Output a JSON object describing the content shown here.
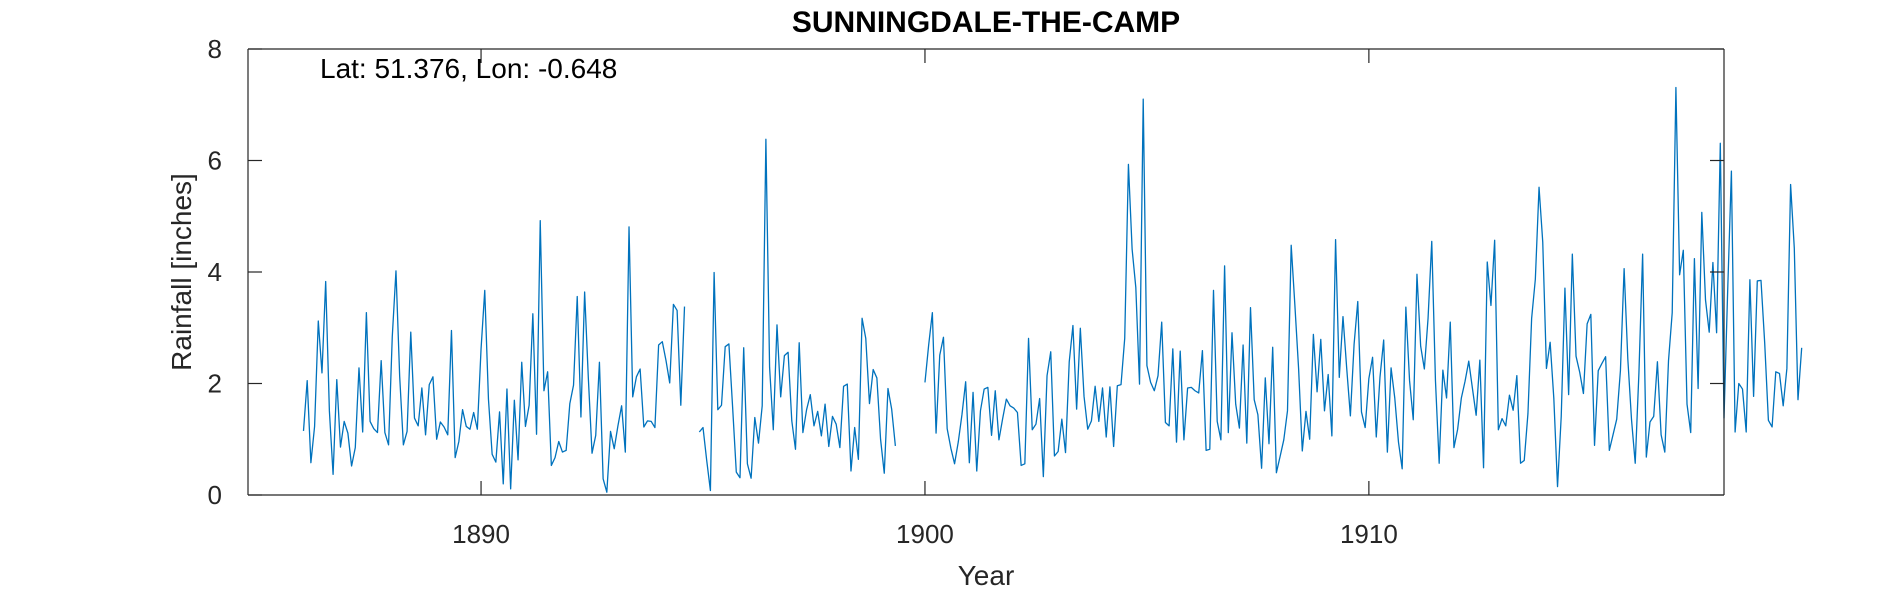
{
  "chart_data": {
    "type": "line",
    "title": "SUNNINGDALE-THE-CAMP",
    "xlabel": "Year",
    "ylabel": "Rainfall [inches]",
    "annotation": "Lat: 51.376, Lon: -0.648",
    "xlim": [
      1884.75,
      1918.0
    ],
    "ylim": [
      0,
      8
    ],
    "xticks": [
      1890,
      1900,
      1910
    ],
    "yticks": [
      0,
      2,
      4,
      6,
      8
    ],
    "grid": false,
    "legend": "none",
    "line_color": "#0072BD",
    "series": [
      {
        "x_start": 1886.0,
        "x_step": 0.08333333,
        "values": [
          1.15,
          2.05,
          0.58,
          1.23,
          3.12,
          2.19,
          3.83,
          1.51,
          0.37,
          2.07,
          0.86,
          1.32,
          1.11,
          0.52,
          0.85,
          2.28,
          1.13,
          3.27,
          1.32,
          1.19,
          1.12,
          2.41,
          1.12,
          0.9,
          2.84,
          4.02,
          2.13,
          0.9,
          1.14,
          2.92,
          1.38,
          1.24,
          1.92,
          1.08,
          1.98,
          2.12,
          1.0,
          1.31,
          1.22,
          1.08,
          2.95,
          0.67,
          0.96,
          1.53,
          1.23,
          1.18,
          1.48,
          1.18,
          2.62,
          3.67,
          1.72,
          0.73,
          0.59,
          1.49,
          0.2,
          1.9,
          0.11,
          1.7,
          0.63,
          2.38,
          1.23,
          1.61,
          3.25,
          1.09,
          4.92,
          1.87,
          2.21,
          0.53,
          0.67,
          0.96,
          0.77,
          0.8,
          1.64,
          1.97,
          3.56,
          1.4,
          3.64,
          2.1,
          0.75,
          1.07,
          2.38,
          0.29,
          0.05,
          1.14,
          0.83,
          1.24,
          1.6,
          0.77,
          4.81,
          1.76,
          2.12,
          2.26,
          1.22,
          1.33,
          1.32,
          1.21,
          2.69,
          2.75,
          2.41,
          2.01,
          3.42,
          3.31,
          1.61,
          3.38,
          null,
          null,
          null,
          1.13,
          1.21,
          0.62,
          0.08,
          3.99,
          1.53,
          1.61,
          2.66,
          2.71,
          1.58,
          0.41,
          0.31,
          2.64,
          0.56,
          0.3,
          1.39,
          0.93,
          1.6,
          6.38,
          2.29,
          1.17,
          3.05,
          1.76,
          2.5,
          2.56,
          1.33,
          0.82,
          2.73,
          1.12,
          1.53,
          1.8,
          1.24,
          1.5,
          1.06,
          1.63,
          0.87,
          1.41,
          1.27,
          0.85,
          1.95,
          1.99,
          0.43,
          1.21,
          0.64,
          3.17,
          2.81,
          1.64,
          2.25,
          2.1,
          1.0,
          0.39,
          1.91,
          1.54,
          0.88,
          null,
          null,
          null,
          null,
          null,
          null,
          null,
          2.02,
          2.69,
          3.27,
          1.11,
          2.51,
          2.83,
          1.19,
          0.84,
          0.56,
          0.95,
          1.44,
          2.03,
          0.58,
          1.84,
          0.43,
          1.51,
          1.9,
          1.93,
          1.07,
          1.87,
          0.99,
          1.37,
          1.72,
          1.6,
          1.56,
          1.48,
          0.53,
          0.56,
          2.81,
          1.17,
          1.27,
          1.73,
          0.33,
          2.14,
          2.57,
          0.7,
          0.78,
          1.36,
          0.76,
          2.39,
          3.04,
          1.54,
          2.99,
          1.77,
          1.18,
          1.33,
          1.95,
          1.32,
          1.92,
          1.04,
          1.94,
          0.87,
          1.96,
          1.98,
          2.81,
          5.93,
          4.41,
          3.72,
          1.99,
          7.1,
          2.32,
          2.02,
          1.87,
          2.14,
          3.1,
          1.3,
          1.24,
          2.62,
          0.95,
          2.58,
          0.99,
          1.92,
          1.93,
          1.87,
          1.83,
          2.59,
          0.8,
          0.82,
          3.67,
          1.32,
          0.99,
          4.11,
          1.12,
          2.91,
          1.63,
          1.2,
          2.69,
          0.93,
          3.36,
          1.71,
          1.44,
          0.48,
          2.1,
          0.92,
          2.65,
          0.4,
          0.69,
          0.99,
          1.51,
          4.48,
          3.4,
          2.27,
          0.79,
          1.5,
          1.0,
          2.88,
          1.85,
          2.79,
          1.51,
          2.16,
          1.06,
          4.58,
          2.11,
          3.2,
          2.28,
          1.42,
          2.7,
          3.47,
          1.49,
          1.21,
          2.09,
          2.47,
          1.04,
          2.11,
          2.78,
          0.77,
          2.28,
          1.74,
          0.95,
          0.47,
          3.37,
          2.05,
          1.35,
          3.96,
          2.67,
          2.26,
          3.17,
          4.55,
          2.05,
          0.57,
          2.24,
          1.74,
          3.1,
          0.85,
          1.18,
          1.74,
          2.04,
          2.4,
          1.91,
          1.43,
          2.42,
          0.49,
          4.18,
          3.4,
          4.57,
          1.17,
          1.37,
          1.24,
          1.79,
          1.52,
          2.14,
          0.57,
          0.62,
          1.46,
          3.17,
          3.87,
          5.52,
          4.54,
          2.27,
          2.74,
          1.73,
          0.15,
          1.41,
          3.71,
          1.8,
          4.32,
          2.49,
          2.2,
          1.82,
          3.07,
          3.24,
          0.89,
          2.23,
          2.36,
          2.48,
          0.8,
          1.08,
          1.36,
          2.23,
          4.06,
          2.44,
          1.35,
          0.57,
          2.19,
          4.32,
          0.68,
          1.31,
          1.41,
          2.39,
          1.08,
          0.77,
          2.41,
          3.27,
          7.31,
          3.95,
          4.39,
          1.63,
          1.12,
          4.24,
          1.91,
          5.07,
          3.5,
          2.92,
          4.17,
          2.91,
          6.31,
          1.38,
          3.68,
          5.81,
          1.13,
          2.0,
          1.9,
          1.13,
          3.86,
          1.77,
          3.84,
          3.85,
          2.73,
          1.34,
          1.22,
          2.21,
          2.18,
          1.6,
          2.27,
          5.57,
          4.43,
          1.71,
          2.64
        ]
      }
    ]
  }
}
